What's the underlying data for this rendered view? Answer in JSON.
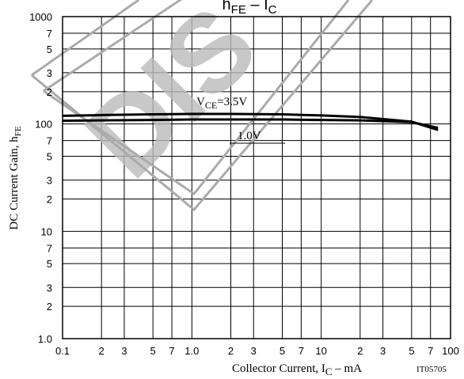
{
  "chart_data": {
    "type": "line",
    "title": [
      "h",
      "FE",
      " – I",
      "C"
    ],
    "y_label": [
      "DC Current Gain, h",
      "FE"
    ],
    "x_label": [
      "Collector Current, I",
      "C",
      " – mA"
    ],
    "code": "IT05705",
    "watermark": "DIS",
    "log_x": true,
    "log_y": true,
    "grid": true,
    "xlim": [
      0.1,
      100
    ],
    "ylim": [
      1,
      1000
    ],
    "xticks": [
      0.1,
      {
        "value": 0.2,
        "label": "2"
      },
      {
        "value": 0.3,
        "label": "3"
      },
      {
        "value": 0.5,
        "label": "5"
      },
      {
        "value": 0.7,
        "label": "7"
      },
      {
        "value": 1,
        "label": "1.0"
      },
      2,
      3,
      5,
      7,
      10,
      {
        "value": 20,
        "label": "2"
      },
      {
        "value": 30,
        "label": "3"
      },
      {
        "value": 50,
        "label": "5"
      },
      {
        "value": 70,
        "label": "7"
      },
      100
    ],
    "yticks": [
      {
        "value": 1,
        "label": "1.0"
      },
      2,
      3,
      5,
      7,
      10,
      {
        "value": 20,
        "label": "2"
      },
      {
        "value": 30,
        "label": "3"
      },
      {
        "value": 50,
        "label": "5"
      },
      {
        "value": 70,
        "label": "7"
      },
      100,
      {
        "value": 200,
        "label": "2"
      },
      {
        "value": 300,
        "label": "3"
      },
      {
        "value": 500,
        "label": "5"
      },
      {
        "value": 700,
        "label": "7"
      },
      1000
    ],
    "x": [
      0.1,
      0.2,
      0.5,
      1,
      2,
      5,
      10,
      20,
      50,
      80
    ],
    "series": [
      {
        "name": [
          "V",
          "CE",
          "=3.5V"
        ],
        "color": "#000000",
        "values": [
          119,
          121,
          123,
          124,
          124,
          123,
          120,
          116,
          105,
          88
        ]
      },
      {
        "name": [
          "1.0V"
        ],
        "color": "#000000",
        "values": [
          107,
          108,
          109,
          110,
          110,
          110,
          109,
          108,
          104,
          92
        ]
      }
    ]
  }
}
